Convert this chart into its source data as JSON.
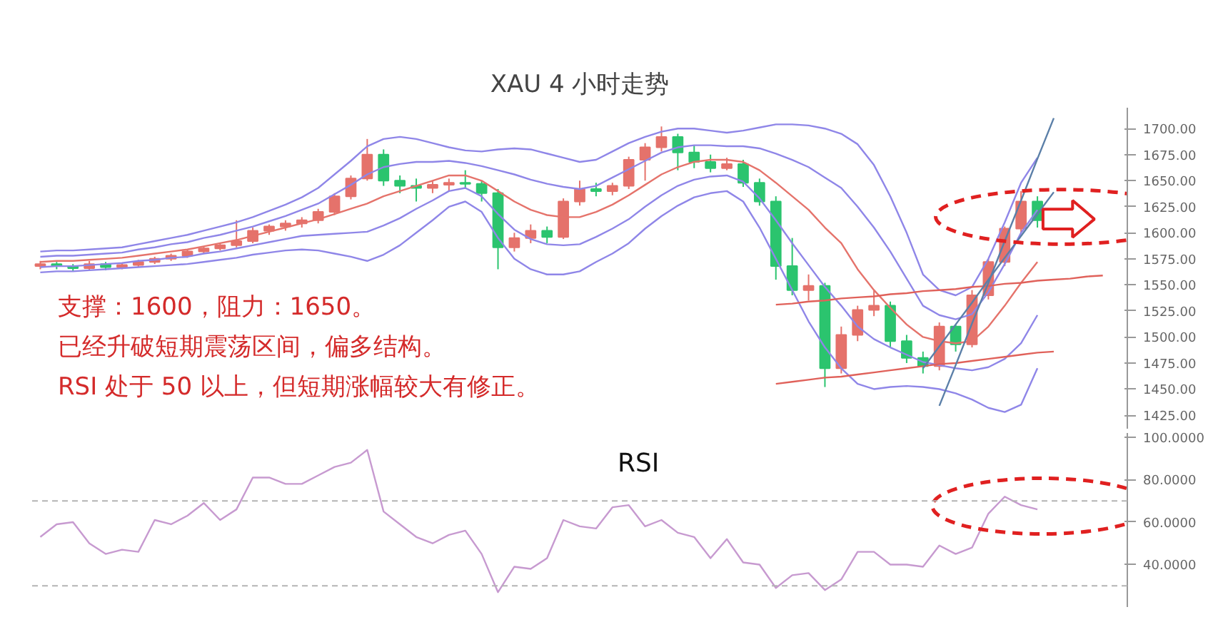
{
  "chart_data": [
    {
      "type": "candlestick",
      "title": "XAU 4 小时走势",
      "categories": [
        null,
        null,
        null,
        null,
        null,
        null,
        null,
        null,
        null,
        null,
        null,
        null,
        null,
        null,
        null,
        null,
        null,
        null,
        null,
        null,
        null,
        null,
        null,
        null,
        null,
        null,
        null,
        null,
        null,
        null,
        null,
        null,
        null,
        null,
        null,
        null,
        null,
        null,
        null,
        null,
        null,
        null,
        null,
        null,
        null,
        null,
        null,
        null,
        null,
        null,
        null,
        null,
        null,
        null,
        null,
        null,
        null,
        null,
        null,
        null,
        null,
        null,
        null,
        null,
        null,
        null,
        null
      ],
      "ohlc": [
        [
          1568,
          1573,
          1565,
          1570
        ],
        [
          1570,
          1572,
          1565,
          1568
        ],
        [
          1568,
          1570,
          1563,
          1566
        ],
        [
          1566,
          1573,
          1564,
          1570
        ],
        [
          1570,
          1572,
          1564,
          1567
        ],
        [
          1567,
          1571,
          1565,
          1569
        ],
        [
          1569,
          1574,
          1567,
          1572
        ],
        [
          1572,
          1577,
          1570,
          1575
        ],
        [
          1575,
          1580,
          1573,
          1578
        ],
        [
          1578,
          1584,
          1576,
          1582
        ],
        [
          1582,
          1587,
          1580,
          1585
        ],
        [
          1585,
          1590,
          1583,
          1588
        ],
        [
          1588,
          1612,
          1586,
          1592
        ],
        [
          1592,
          1605,
          1590,
          1602
        ],
        [
          1602,
          1608,
          1598,
          1606
        ],
        [
          1606,
          1612,
          1602,
          1609
        ],
        [
          1609,
          1615,
          1605,
          1612
        ],
        [
          1612,
          1623,
          1609,
          1620
        ],
        [
          1620,
          1638,
          1617,
          1635
        ],
        [
          1635,
          1655,
          1632,
          1652
        ],
        [
          1652,
          1690,
          1650,
          1675
        ],
        [
          1675,
          1680,
          1645,
          1650
        ],
        [
          1650,
          1655,
          1638,
          1645
        ],
        [
          1645,
          1652,
          1630,
          1643
        ],
        [
          1643,
          1650,
          1638,
          1646
        ],
        [
          1646,
          1652,
          1640,
          1648
        ],
        [
          1648,
          1660,
          1642,
          1647
        ],
        [
          1647,
          1650,
          1630,
          1638
        ],
        [
          1638,
          1642,
          1565,
          1586
        ],
        [
          1586,
          1600,
          1582,
          1595
        ],
        [
          1595,
          1608,
          1590,
          1602
        ],
        [
          1602,
          1606,
          1590,
          1596
        ],
        [
          1596,
          1633,
          1594,
          1630
        ],
        [
          1630,
          1650,
          1626,
          1642
        ],
        [
          1642,
          1648,
          1635,
          1640
        ],
        [
          1640,
          1648,
          1636,
          1645
        ],
        [
          1645,
          1673,
          1642,
          1670
        ],
        [
          1670,
          1686,
          1650,
          1682
        ],
        [
          1682,
          1702,
          1678,
          1692
        ],
        [
          1692,
          1695,
          1660,
          1677
        ],
        [
          1677,
          1684,
          1662,
          1668
        ],
        [
          1668,
          1675,
          1658,
          1662
        ],
        [
          1662,
          1672,
          1660,
          1666
        ],
        [
          1666,
          1670,
          1644,
          1648
        ],
        [
          1648,
          1652,
          1626,
          1630
        ],
        [
          1630,
          1635,
          1555,
          1568
        ],
        [
          1568,
          1595,
          1540,
          1545
        ],
        [
          1545,
          1560,
          1535,
          1549
        ],
        [
          1549,
          1552,
          1452,
          1470
        ],
        [
          1470,
          1510,
          1465,
          1502
        ],
        [
          1502,
          1530,
          1496,
          1526
        ],
        [
          1526,
          1545,
          1520,
          1530
        ],
        [
          1530,
          1534,
          1490,
          1496
        ],
        [
          1496,
          1502,
          1475,
          1480
        ],
        [
          1480,
          1486,
          1465,
          1472
        ],
        [
          1472,
          1514,
          1468,
          1510
        ],
        [
          1510,
          1512,
          1486,
          1493
        ],
        [
          1493,
          1545,
          1490,
          1540
        ],
        [
          1540,
          1575,
          1536,
          1572
        ],
        [
          1572,
          1606,
          1568,
          1604
        ],
        [
          1604,
          1640,
          1600,
          1630
        ],
        [
          1630,
          1635,
          1605,
          1612
        ],
        null,
        null,
        null,
        null,
        null
      ],
      "colors": [
        "#e5726b",
        "#2bc46e",
        "#2bc46e",
        "#e5726b",
        "#2bc46e",
        "#e5726b",
        "#e5726b",
        "#e5726b",
        "#e5726b",
        "#e5726b",
        "#e5726b",
        "#e5726b",
        "#e5726b",
        "#e5726b",
        "#e5726b",
        "#e5726b",
        "#e5726b",
        "#e5726b",
        "#e5726b",
        "#e5726b",
        "#e5726b",
        "#2bc46e",
        "#2bc46e",
        "#2bc46e",
        "#e5726b",
        "#e5726b",
        "#2bc46e",
        "#2bc46e",
        "#2bc46e",
        "#e5726b",
        "#e5726b",
        "#2bc46e",
        "#e5726b",
        "#e5726b",
        "#2bc46e",
        "#e5726b",
        "#e5726b",
        "#e5726b",
        "#e5726b",
        "#2bc46e",
        "#2bc46e",
        "#2bc46e",
        "#e5726b",
        "#2bc46e",
        "#2bc46e",
        "#2bc46e",
        "#2bc46e",
        "#e5726b",
        "#2bc46e",
        "#e5726b",
        "#e5726b",
        "#e5726b",
        "#2bc46e",
        "#2bc46e",
        "#2bc46e",
        "#e5726b",
        "#2bc46e",
        "#e5726b",
        "#e5726b",
        "#e5726b",
        "#e5726b",
        "#2bc46e",
        null,
        null,
        null,
        null,
        null
      ],
      "series": [
        {
          "type": "line",
          "color": "#8f86e8",
          "values": [
            1582,
            1583,
            1583,
            1584,
            1585,
            1586,
            1589,
            1592,
            1595,
            1598,
            1602,
            1606,
            1610,
            1615,
            1621,
            1627,
            1634,
            1643,
            1656,
            1669,
            1683,
            1690,
            1692,
            1690,
            1686,
            1682,
            1679,
            1678,
            1680,
            1681,
            1680,
            1676,
            1672,
            1668,
            1670,
            1678,
            1686,
            1692,
            1697,
            1700,
            1700,
            1698,
            1696,
            1698,
            1701,
            1704,
            1704,
            1703,
            1700,
            1695,
            1685,
            1665,
            1635,
            1600,
            1560,
            1545,
            1540,
            1548,
            1575,
            1610,
            1648,
            1672,
            null,
            null,
            null,
            null,
            null
          ]
        },
        {
          "type": "line",
          "color": "#8f86e8",
          "values": [
            1577,
            1578,
            1578,
            1579,
            1580,
            1581,
            1584,
            1586,
            1589,
            1591,
            1595,
            1598,
            1602,
            1606,
            1611,
            1616,
            1622,
            1628,
            1637,
            1646,
            1656,
            1663,
            1666,
            1668,
            1668,
            1669,
            1667,
            1664,
            1660,
            1656,
            1651,
            1647,
            1644,
            1642,
            1645,
            1653,
            1661,
            1669,
            1677,
            1682,
            1684,
            1684,
            1683,
            1683,
            1681,
            1676,
            1670,
            1663,
            1653,
            1643,
            1625,
            1605,
            1582,
            1556,
            1530,
            1521,
            1517,
            1522,
            1543,
            1570,
            1600,
            1622,
            null,
            null,
            null,
            null,
            null
          ]
        },
        {
          "type": "line",
          "color": "#e5736b",
          "values": [
            1572,
            1573,
            1573,
            1574,
            1575,
            1576,
            1578,
            1580,
            1582,
            1584,
            1587,
            1590,
            1593,
            1597,
            1601,
            1605,
            1609,
            1613,
            1618,
            1623,
            1628,
            1635,
            1640,
            1645,
            1650,
            1655,
            1655,
            1650,
            1640,
            1630,
            1622,
            1617,
            1615,
            1615,
            1620,
            1627,
            1636,
            1646,
            1656,
            1663,
            1668,
            1670,
            1670,
            1668,
            1660,
            1648,
            1635,
            1622,
            1605,
            1590,
            1565,
            1545,
            1528,
            1512,
            1500,
            1496,
            1494,
            1496,
            1510,
            1530,
            1552,
            1572,
            null,
            null,
            null,
            null,
            null
          ]
        },
        {
          "type": "line",
          "color": "#8f86e8",
          "values": [
            1567,
            1568,
            1568,
            1569,
            1570,
            1571,
            1573,
            1574,
            1576,
            1577,
            1580,
            1582,
            1585,
            1588,
            1591,
            1594,
            1597,
            1598,
            1599,
            1600,
            1601,
            1607,
            1614,
            1623,
            1631,
            1640,
            1643,
            1635,
            1618,
            1603,
            1594,
            1589,
            1588,
            1589,
            1596,
            1604,
            1613,
            1625,
            1636,
            1645,
            1651,
            1654,
            1655,
            1649,
            1633,
            1612,
            1590,
            1569,
            1548,
            1530,
            1510,
            1498,
            1490,
            1483,
            1476,
            1473,
            1470,
            1468,
            1471,
            1479,
            1494,
            1521,
            null,
            null,
            null,
            null,
            null
          ]
        },
        {
          "type": "line",
          "color": "#8f86e8",
          "values": [
            1562,
            1563,
            1563,
            1564,
            1565,
            1566,
            1567,
            1568,
            1569,
            1570,
            1572,
            1574,
            1576,
            1579,
            1581,
            1583,
            1584,
            1583,
            1580,
            1577,
            1573,
            1579,
            1588,
            1600,
            1612,
            1625,
            1630,
            1620,
            1595,
            1575,
            1565,
            1560,
            1560,
            1563,
            1572,
            1580,
            1590,
            1604,
            1616,
            1626,
            1634,
            1638,
            1640,
            1630,
            1605,
            1575,
            1545,
            1515,
            1490,
            1470,
            1455,
            1450,
            1452,
            1453,
            1452,
            1450,
            1446,
            1440,
            1432,
            1428,
            1435,
            1470,
            null,
            null,
            null,
            null,
            null
          ]
        },
        {
          "type": "line",
          "color": "#e0615a",
          "values": [
            null,
            null,
            null,
            null,
            null,
            null,
            null,
            null,
            null,
            null,
            null,
            null,
            null,
            null,
            null,
            null,
            null,
            null,
            null,
            null,
            null,
            null,
            null,
            null,
            null,
            null,
            null,
            null,
            null,
            null,
            null,
            null,
            null,
            null,
            null,
            null,
            null,
            null,
            null,
            null,
            null,
            null,
            null,
            null,
            null,
            1455,
            1457,
            1459,
            1461,
            1462,
            1464,
            1466,
            1468,
            1470,
            1472,
            1474,
            1475,
            1477,
            1479,
            1481,
            1483,
            1485,
            1486,
            null,
            null,
            null,
            null
          ]
        },
        {
          "type": "line",
          "color": "#e0615a",
          "values": [
            null,
            null,
            null,
            null,
            null,
            null,
            null,
            null,
            null,
            null,
            null,
            null,
            null,
            null,
            null,
            null,
            null,
            null,
            null,
            null,
            null,
            null,
            null,
            null,
            null,
            null,
            null,
            null,
            null,
            null,
            null,
            null,
            null,
            null,
            null,
            null,
            null,
            null,
            null,
            null,
            null,
            null,
            null,
            null,
            null,
            1531,
            1532,
            1534,
            1535,
            1537,
            1538,
            1539,
            1541,
            1542,
            1544,
            1545,
            1546,
            1548,
            1549,
            1551,
            1552,
            1554,
            1555,
            1556,
            1558,
            1559,
            null
          ]
        },
        {
          "type": "line",
          "color": "#5b7fa8",
          "values": [
            null,
            null,
            null,
            null,
            null,
            null,
            null,
            null,
            null,
            null,
            null,
            null,
            null,
            null,
            null,
            null,
            null,
            null,
            null,
            null,
            null,
            null,
            null,
            null,
            null,
            null,
            null,
            null,
            null,
            null,
            null,
            null,
            null,
            null,
            null,
            null,
            null,
            null,
            null,
            null,
            null,
            null,
            null,
            null,
            null,
            null,
            null,
            null,
            null,
            null,
            null,
            null,
            null,
            null,
            null,
            1434,
            1473,
            1513,
            1552,
            1592,
            1631,
            1671,
            1710,
            null,
            null,
            null,
            null
          ]
        },
        {
          "type": "line",
          "color": "#5b7fa8",
          "values": [
            null,
            null,
            null,
            null,
            null,
            null,
            null,
            null,
            null,
            null,
            null,
            null,
            null,
            null,
            null,
            null,
            null,
            null,
            null,
            null,
            null,
            null,
            null,
            null,
            null,
            null,
            null,
            null,
            null,
            null,
            null,
            null,
            null,
            null,
            null,
            null,
            null,
            null,
            null,
            null,
            null,
            null,
            null,
            null,
            null,
            null,
            null,
            null,
            null,
            null,
            null,
            null,
            null,
            null,
            1470,
            1491,
            1512,
            1533,
            1555,
            1576,
            1597,
            1618,
            1639,
            null,
            null,
            null,
            null
          ]
        }
      ],
      "ylim": [
        1412,
        1720
      ],
      "yticks": [
        {
          "value": 1425,
          "label": "1425.00"
        },
        {
          "value": 1450,
          "label": "1450.00"
        },
        {
          "value": 1475,
          "label": "1475.00"
        },
        {
          "value": 1500,
          "label": "1500.00"
        },
        {
          "value": 1525,
          "label": "1525.00"
        },
        {
          "value": 1550,
          "label": "1550.00"
        },
        {
          "value": 1575,
          "label": "1575.00"
        },
        {
          "value": 1600,
          "label": "1600.00"
        },
        {
          "value": 1625,
          "label": "1625.00"
        },
        {
          "value": 1650,
          "label": "1650.00"
        },
        {
          "value": 1675,
          "label": "1675.00"
        },
        {
          "value": 1700,
          "label": "1700.00"
        }
      ],
      "tick_labels": "y",
      "annotations": [
        "支撑：1600，阻力：1650。",
        "已经升破短期震荡区间，偏多结构。",
        "RSI 处于 50 以上，但短期涨幅较大有修正。"
      ]
    },
    {
      "type": "line",
      "title": "RSI",
      "categories": [
        null,
        null,
        null,
        null,
        null,
        null,
        null,
        null,
        null,
        null,
        null,
        null,
        null,
        null,
        null,
        null,
        null,
        null,
        null,
        null,
        null,
        null,
        null,
        null,
        null,
        null,
        null,
        null,
        null,
        null,
        null,
        null,
        null,
        null,
        null,
        null,
        null,
        null,
        null,
        null,
        null,
        null,
        null,
        null,
        null,
        null,
        null,
        null,
        null,
        null,
        null,
        null,
        null,
        null,
        null,
        null,
        null,
        null,
        null,
        null,
        null,
        null,
        null,
        null,
        null,
        null,
        null
      ],
      "color": "#c79ad0",
      "values": [
        53,
        59,
        60,
        50,
        45,
        47,
        46,
        61,
        59,
        63,
        69,
        61,
        66,
        81,
        81,
        78,
        78,
        82,
        86,
        88,
        94,
        65,
        59,
        53,
        50,
        54,
        56,
        45,
        27,
        39,
        38,
        43,
        61,
        58,
        57,
        67,
        68,
        58,
        61,
        55,
        53,
        43,
        52,
        41,
        40,
        29,
        35,
        36,
        28,
        33,
        46,
        46,
        40,
        40,
        39,
        49,
        45,
        48,
        64,
        72,
        68,
        66,
        null,
        null,
        null,
        null,
        null
      ],
      "ylim": [
        20,
        102
      ],
      "yticks": [
        {
          "value": 40,
          "label": "40.0000"
        },
        {
          "value": 60,
          "label": "60.0000"
        },
        {
          "value": 80,
          "label": "80.0000"
        },
        {
          "value": 100,
          "label": "100.0000"
        }
      ],
      "ref_lines": [
        {
          "axis": "y",
          "value": 70,
          "color": "#b4b4b4",
          "line_style": "dashed"
        },
        {
          "axis": "y",
          "value": 30,
          "color": "#b4b4b4",
          "line_style": "dashed"
        }
      ],
      "tick_labels": "y"
    }
  ]
}
